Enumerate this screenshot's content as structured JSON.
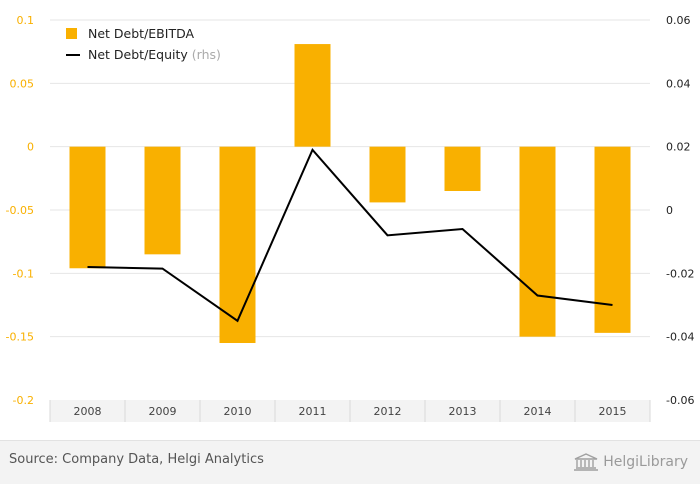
{
  "chart_data": {
    "type": "bar",
    "categories": [
      "2008",
      "2009",
      "2010",
      "2011",
      "2012",
      "2013",
      "2014",
      "2015"
    ],
    "series": [
      {
        "name": "Net Debt/EBITDA",
        "kind": "bar",
        "axis": "left",
        "color": "#f9b000",
        "values": [
          -0.096,
          -0.085,
          -0.155,
          0.081,
          -0.044,
          -0.035,
          -0.15,
          -0.147
        ]
      },
      {
        "name": "Net Debt/Equity",
        "name_suffix": "(rhs)",
        "kind": "line",
        "axis": "right",
        "color": "#000000",
        "values": [
          -0.018,
          -0.0185,
          -0.035,
          0.019,
          -0.008,
          -0.006,
          -0.027,
          -0.03
        ]
      }
    ],
    "left_axis": {
      "ylim": [
        -0.2,
        0.1
      ],
      "ticks": [
        "0.1",
        "0.05",
        "0",
        "-0.05",
        "-0.1",
        "-0.15",
        "-0.2"
      ],
      "color": "#f9b000"
    },
    "right_axis": {
      "ylim": [
        -0.06,
        0.06
      ],
      "ticks": [
        "0.06",
        "0.04",
        "0.02",
        "0",
        "-0.02",
        "-0.04",
        "-0.06"
      ],
      "color": "#222222"
    },
    "grid": true,
    "legend_position": "top-left"
  },
  "footer": {
    "source": "Source: Company Data, Helgi Analytics",
    "logo_text": "HelgiLibrary"
  }
}
